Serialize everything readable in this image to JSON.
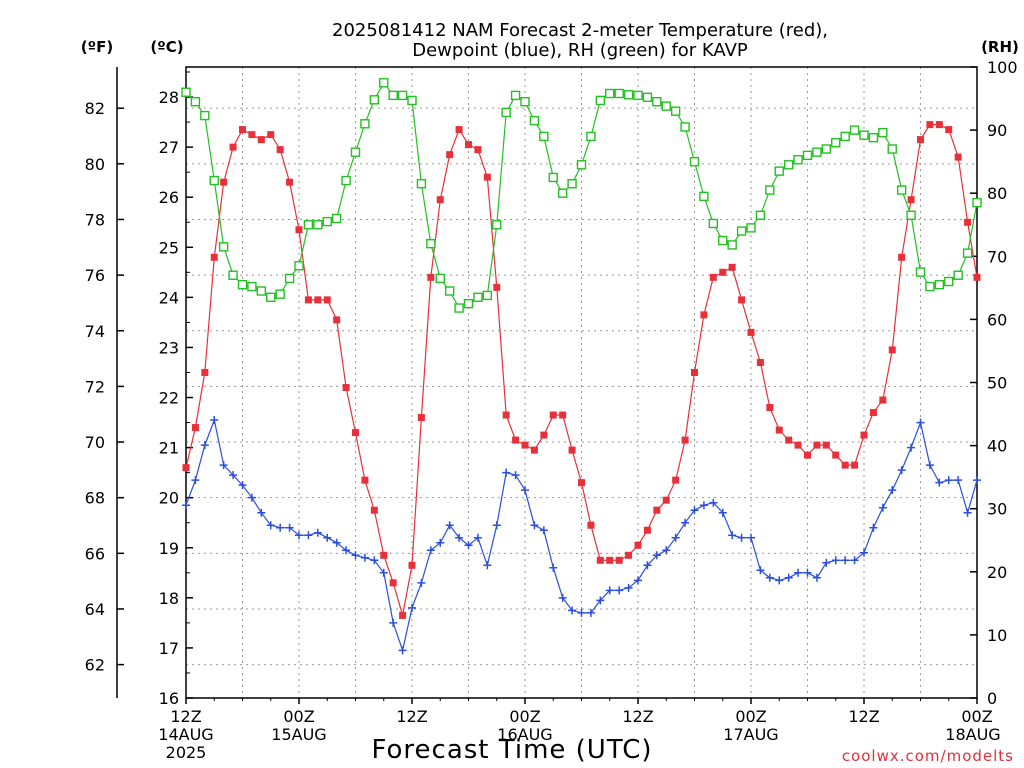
{
  "chart_data": {
    "type": "line",
    "title_lines": [
      "2025081412 NAM Forecast 2-meter Temperature (red),",
      "Dewpoint (blue), RH (green) for KAVP"
    ],
    "xlabel": "Forecast Time (UTC)",
    "credit": "coolwx.com/modelts",
    "axis_units": {
      "fahrenheit": "(ºF)",
      "celsius": "(ºC)",
      "rh": "(RH)"
    },
    "x_ticks": [
      {
        "hour": 0,
        "lines": [
          "12Z",
          "14AUG",
          "2025"
        ]
      },
      {
        "hour": 12,
        "lines": [
          "00Z",
          "15AUG"
        ]
      },
      {
        "hour": 24,
        "lines": [
          "12Z"
        ]
      },
      {
        "hour": 36,
        "lines": [
          "00Z",
          "16AUG"
        ]
      },
      {
        "hour": 48,
        "lines": [
          "12Z"
        ]
      },
      {
        "hour": 60,
        "lines": [
          "00Z",
          "17AUG"
        ]
      },
      {
        "hour": 72,
        "lines": [
          "12Z"
        ]
      },
      {
        "hour": 84,
        "lines": [
          "00Z",
          "18AUG"
        ]
      }
    ],
    "x_range_hours": [
      0,
      84
    ],
    "fahrenheit_ticks": [
      62,
      64,
      66,
      68,
      70,
      72,
      74,
      76,
      78,
      80,
      82
    ],
    "celsius_range": [
      16,
      28.6
    ],
    "celsius_ticks": [
      16,
      17,
      18,
      19,
      20,
      21,
      22,
      23,
      24,
      25,
      26,
      27,
      28
    ],
    "rh_range": [
      0,
      100
    ],
    "rh_ticks": [
      0,
      10,
      20,
      30,
      40,
      50,
      60,
      70,
      80,
      90,
      100
    ],
    "grid": true,
    "series": [
      {
        "name": "Temperature",
        "units": "C",
        "color": "#e8303a",
        "marker": "filled-square",
        "x": [
          0,
          1,
          2,
          3,
          4,
          5,
          6,
          7,
          8,
          9,
          10,
          11,
          12,
          13,
          14,
          15,
          16,
          17,
          18,
          19,
          20,
          21,
          22,
          23,
          24,
          25,
          26,
          27,
          28,
          29,
          30,
          31,
          32,
          33,
          34,
          35,
          36,
          37,
          38,
          39,
          40,
          41,
          42,
          43,
          44,
          45,
          46,
          47,
          48,
          49,
          50,
          51,
          52,
          53,
          54,
          55,
          56,
          57,
          58,
          59,
          60,
          61,
          62,
          63,
          64,
          65,
          66,
          67,
          68,
          69,
          70,
          71,
          72,
          73,
          74,
          75,
          76,
          77,
          78,
          79,
          80,
          81,
          82,
          83,
          84
        ],
        "values": [
          20.6,
          21.4,
          22.5,
          24.8,
          26.3,
          27.0,
          27.35,
          27.25,
          27.15,
          27.25,
          26.95,
          26.3,
          25.35,
          23.95,
          23.95,
          23.95,
          23.55,
          22.2,
          21.3,
          20.35,
          19.75,
          18.85,
          18.3,
          17.65,
          18.65,
          21.6,
          24.4,
          25.95,
          26.85,
          27.35,
          27.05,
          26.95,
          26.4,
          24.2,
          21.65,
          21.15,
          21.05,
          20.95,
          21.25,
          21.65,
          21.65,
          20.95,
          20.3,
          19.45,
          18.75,
          18.75,
          18.75,
          18.85,
          19.05,
          19.35,
          19.75,
          19.95,
          20.35,
          21.15,
          22.5,
          23.65,
          24.4,
          24.5,
          24.6,
          23.95,
          23.3,
          22.7,
          21.8,
          21.35,
          21.15,
          21.05,
          20.85,
          21.05,
          21.05,
          20.85,
          20.65,
          20.65,
          21.25,
          21.7,
          21.95,
          22.95,
          24.8,
          25.95,
          27.15,
          27.45,
          27.45,
          27.35,
          26.8,
          25.5,
          24.4
        ]
      },
      {
        "name": "Dewpoint",
        "units": "C",
        "color": "#2a4ee0",
        "marker": "plus",
        "x": [
          0,
          1,
          2,
          3,
          4,
          5,
          6,
          7,
          8,
          9,
          10,
          11,
          12,
          13,
          14,
          15,
          16,
          17,
          18,
          19,
          20,
          21,
          22,
          23,
          24,
          25,
          26,
          27,
          28,
          29,
          30,
          31,
          32,
          33,
          34,
          35,
          36,
          37,
          38,
          39,
          40,
          41,
          42,
          43,
          44,
          45,
          46,
          47,
          48,
          49,
          50,
          51,
          52,
          53,
          54,
          55,
          56,
          57,
          58,
          59,
          60,
          61,
          62,
          63,
          64,
          65,
          66,
          67,
          68,
          69,
          70,
          71,
          72,
          73,
          74,
          75,
          76,
          77,
          78,
          79,
          80,
          81,
          82,
          83,
          84
        ],
        "values": [
          19.85,
          20.35,
          21.05,
          21.55,
          20.65,
          20.45,
          20.25,
          20.0,
          19.7,
          19.45,
          19.4,
          19.4,
          19.25,
          19.25,
          19.3,
          19.2,
          19.1,
          18.95,
          18.85,
          18.8,
          18.75,
          18.5,
          17.5,
          16.95,
          17.8,
          18.3,
          18.95,
          19.1,
          19.45,
          19.2,
          19.05,
          19.2,
          18.65,
          19.45,
          20.5,
          20.45,
          20.15,
          19.45,
          19.35,
          18.6,
          18.0,
          17.75,
          17.7,
          17.7,
          17.95,
          18.15,
          18.15,
          18.2,
          18.35,
          18.65,
          18.85,
          18.95,
          19.2,
          19.5,
          19.75,
          19.85,
          19.9,
          19.7,
          19.25,
          19.2,
          19.2,
          18.55,
          18.4,
          18.35,
          18.4,
          18.5,
          18.5,
          18.4,
          18.7,
          18.75,
          18.75,
          18.75,
          18.9,
          19.4,
          19.8,
          20.15,
          20.55,
          21.0,
          21.5,
          20.65,
          20.3,
          20.35,
          20.35,
          19.7,
          20.35
        ]
      },
      {
        "name": "RH",
        "units": "%",
        "color": "#22c022",
        "marker": "open-square",
        "x": [
          0,
          1,
          2,
          3,
          4,
          5,
          6,
          7,
          8,
          9,
          10,
          11,
          12,
          13,
          14,
          15,
          16,
          17,
          18,
          19,
          20,
          21,
          22,
          23,
          24,
          25,
          26,
          27,
          28,
          29,
          30,
          31,
          32,
          33,
          34,
          35,
          36,
          37,
          38,
          39,
          40,
          41,
          42,
          43,
          44,
          45,
          46,
          47,
          48,
          49,
          50,
          51,
          52,
          53,
          54,
          55,
          56,
          57,
          58,
          59,
          60,
          61,
          62,
          63,
          64,
          65,
          66,
          67,
          68,
          69,
          70,
          71,
          72,
          73,
          74,
          75,
          76,
          77,
          78,
          79,
          80,
          81,
          82,
          83,
          84
        ],
        "values": [
          96,
          94.5,
          92.3,
          82,
          71.5,
          67,
          65.5,
          65.2,
          64.5,
          63.5,
          64,
          66.5,
          68.5,
          75,
          75,
          75.5,
          76,
          82,
          86.5,
          91,
          94.8,
          97.5,
          95.5,
          95.5,
          94.7,
          81.5,
          72,
          66.5,
          64.5,
          61.8,
          62.5,
          63.5,
          63.8,
          75,
          92.8,
          95.5,
          94.5,
          91.5,
          89,
          82.5,
          80,
          81.5,
          84.5,
          89,
          94.7,
          95.8,
          95.8,
          95.6,
          95.5,
          95.2,
          94.5,
          93.8,
          93,
          90.5,
          85,
          79.5,
          75.2,
          72.5,
          71.8,
          74,
          74.5,
          76.5,
          80.5,
          83.5,
          84.5,
          85.3,
          86,
          86.5,
          87,
          88,
          89,
          90,
          89.2,
          88.8,
          89.6,
          87,
          80.5,
          76.5,
          67.5,
          65.2,
          65.5,
          66,
          67,
          70.5,
          78.5
        ]
      }
    ]
  }
}
